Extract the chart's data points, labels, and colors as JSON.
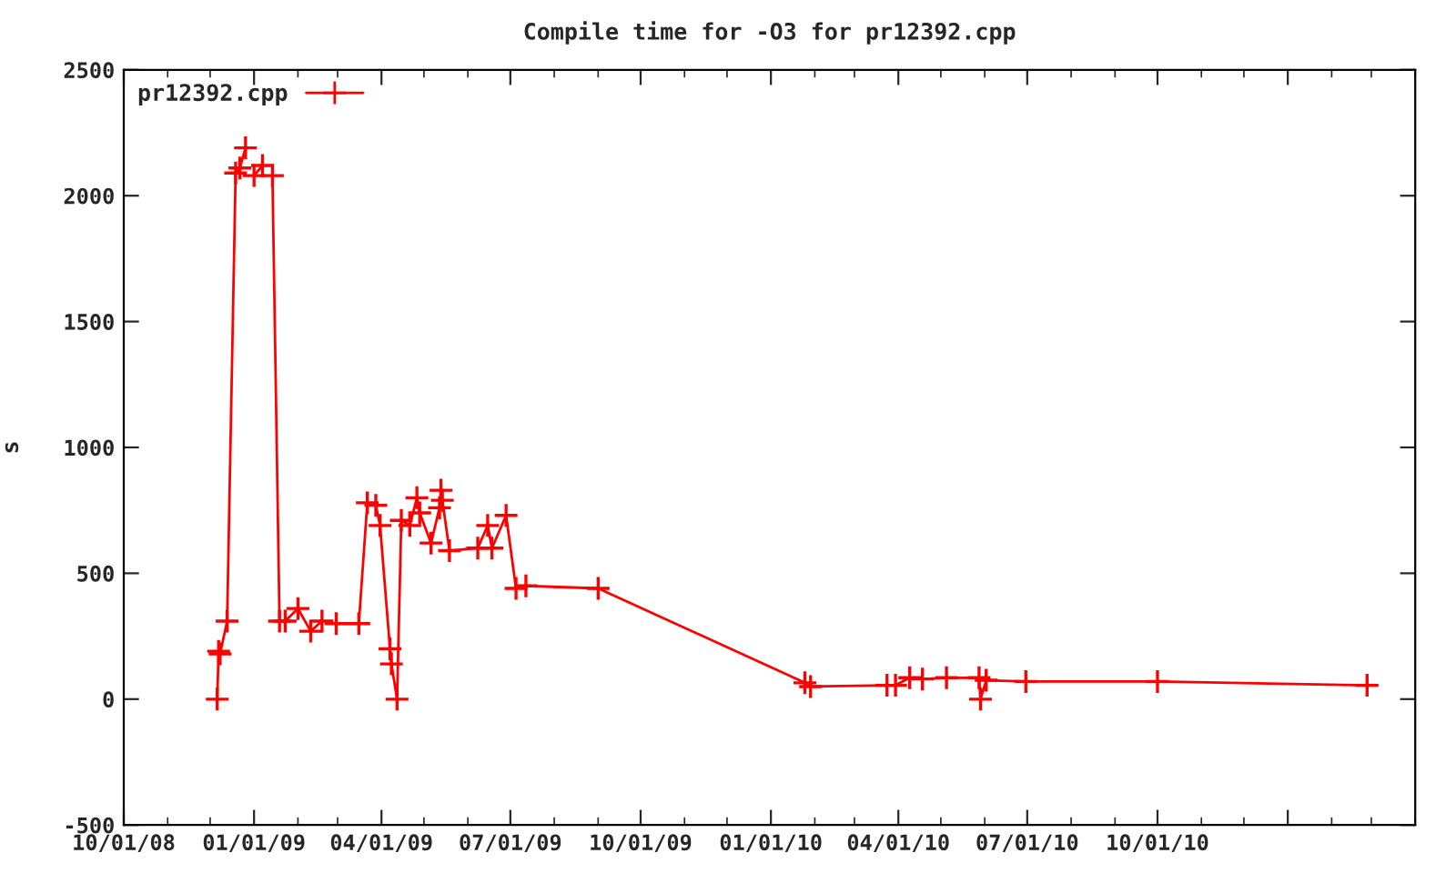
{
  "chart_data": {
    "type": "line",
    "title": "Compile time for -O3 for pr12392.cpp",
    "ylabel": "s",
    "x": [
      "2008-12-06",
      "2008-12-07",
      "2008-12-08",
      "2008-12-13",
      "2008-12-19",
      "2008-12-22",
      "2008-12-26",
      "2008-12-30",
      "2009-01-01",
      "2009-01-07",
      "2009-01-08",
      "2009-01-14",
      "2009-01-19",
      "2009-01-23",
      "2009-02-01",
      "2009-02-10",
      "2009-02-18",
      "2009-02-28",
      "2009-03-16",
      "2009-03-22",
      "2009-03-28",
      "2009-03-31",
      "2009-04-07",
      "2009-04-08",
      "2009-04-12",
      "2009-04-15",
      "2009-04-21",
      "2009-04-26",
      "2009-04-28",
      "2009-05-06",
      "2009-05-12",
      "2009-05-13",
      "2009-05-14",
      "2009-05-19",
      "2009-06-08",
      "2009-06-15",
      "2009-06-18",
      "2009-06-28",
      "2009-07-05",
      "2009-07-12",
      "2009-09-01",
      "2010-01-25",
      "2010-01-29",
      "2010-03-24",
      "2010-03-30",
      "2010-04-09",
      "2010-04-18",
      "2010-05-05",
      "2010-05-28",
      "2010-05-29",
      "2010-06-02",
      "2010-06-30",
      "2010-10-01",
      "2011-02-26"
    ],
    "series": [
      {
        "name": "pr12392.cpp",
        "color": "#ff0000",
        "values": [
          0,
          190,
          180,
          310,
          2090,
          2110,
          2190,
          null,
          2080,
          2120,
          null,
          2080,
          310,
          310,
          360,
          270,
          310,
          300,
          300,
          780,
          770,
          690,
          200,
          140,
          0,
          710,
          690,
          800,
          740,
          620,
          760,
          830,
          790,
          590,
          600,
          690,
          600,
          730,
          440,
          450,
          440,
          65,
          50,
          55,
          55,
          85,
          80,
          85,
          85,
          0,
          75,
          70,
          70,
          55
        ]
      }
    ],
    "xlim": [
      "2008-10-01",
      "2011-04-01"
    ],
    "xticks": [
      {
        "value": "2008-10-01",
        "label": "10/01/08"
      },
      {
        "value": "2009-01-01",
        "label": "01/01/09"
      },
      {
        "value": "2009-04-01",
        "label": "04/01/09"
      },
      {
        "value": "2009-07-01",
        "label": "07/01/09"
      },
      {
        "value": "2009-10-01",
        "label": "10/01/09"
      },
      {
        "value": "2010-01-01",
        "label": "01/01/10"
      },
      {
        "value": "2010-04-01",
        "label": "04/01/10"
      },
      {
        "value": "2010-07-01",
        "label": "07/01/10"
      },
      {
        "value": "2010-10-01",
        "label": "10/01/10"
      },
      {
        "value": "2011-01-01",
        "label": null
      }
    ],
    "ylim": [
      -500,
      2500
    ],
    "yticks": [
      -500,
      0,
      500,
      1000,
      1500,
      2000,
      2500
    ],
    "legend": "top left",
    "marker": "cross",
    "line_style": "solid",
    "grid": false
  }
}
